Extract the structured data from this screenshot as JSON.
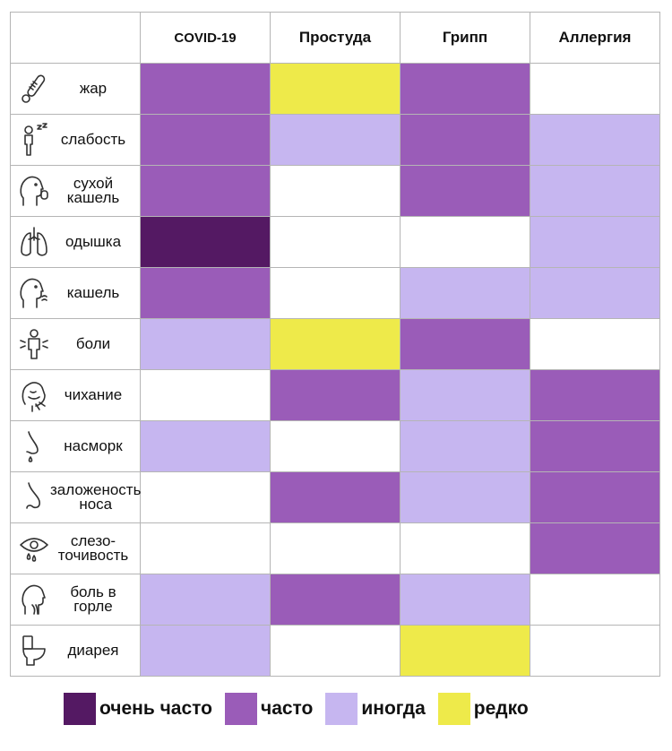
{
  "chart_data": {
    "type": "table",
    "columns": [
      "COVID-19",
      "Простуда",
      "Грипп",
      "Аллергия"
    ],
    "rows": [
      {
        "symptom": "жар",
        "icon": "thermometer-icon",
        "levels": [
          "often",
          "rare",
          "often",
          "none"
        ]
      },
      {
        "symptom": "слабость",
        "icon": "fatigue-person-icon",
        "levels": [
          "often",
          "sometimes",
          "often",
          "sometimes"
        ]
      },
      {
        "symptom": "сухой\nкашель",
        "icon": "dry-cough-icon",
        "levels": [
          "often",
          "none",
          "often",
          "sometimes"
        ]
      },
      {
        "symptom": "одышка",
        "icon": "lungs-icon",
        "levels": [
          "very_often",
          "none",
          "none",
          "sometimes"
        ]
      },
      {
        "symptom": "кашель",
        "icon": "cough-icon",
        "levels": [
          "often",
          "none",
          "sometimes",
          "sometimes"
        ]
      },
      {
        "symptom": "боли",
        "icon": "body-pain-icon",
        "levels": [
          "sometimes",
          "rare",
          "often",
          "none"
        ]
      },
      {
        "symptom": "чихание",
        "icon": "sneeze-icon",
        "levels": [
          "none",
          "often",
          "sometimes",
          "often"
        ]
      },
      {
        "symptom": "насморк",
        "icon": "runny-nose-icon",
        "levels": [
          "sometimes",
          "none",
          "sometimes",
          "often"
        ]
      },
      {
        "symptom": "заложеность\nноса",
        "icon": "nose-icon",
        "levels": [
          "none",
          "often",
          "sometimes",
          "often"
        ]
      },
      {
        "symptom": "слезо-\nточивость",
        "icon": "teary-eye-icon",
        "levels": [
          "none",
          "none",
          "none",
          "often"
        ]
      },
      {
        "symptom": "боль в\nгорле",
        "icon": "sore-throat-icon",
        "levels": [
          "sometimes",
          "often",
          "sometimes",
          "none"
        ]
      },
      {
        "symptom": "диарея",
        "icon": "toilet-icon",
        "levels": [
          "sometimes",
          "none",
          "rare",
          "none"
        ]
      }
    ],
    "legend": [
      {
        "key": "very_often",
        "label": "очень часто",
        "color": "#541963"
      },
      {
        "key": "often",
        "label": "часто",
        "color": "#9a5cb8"
      },
      {
        "key": "sometimes",
        "label": "иногда",
        "color": "#c6b6f0"
      },
      {
        "key": "rare",
        "label": "редко",
        "color": "#eeea4a"
      }
    ],
    "none_color": "#ffffff",
    "legend_position": "bottom"
  }
}
